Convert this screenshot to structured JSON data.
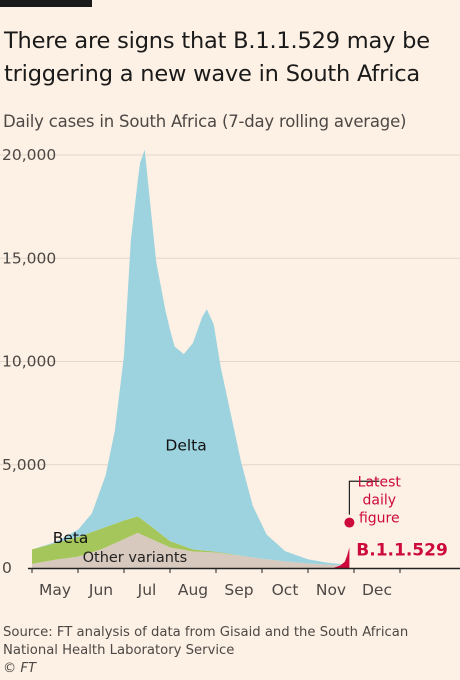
{
  "title": "There are signs that B.1.1.529 may be triggering a new wave in South Africa",
  "subtitle": "Daily cases in South Africa (7-day rolling average)",
  "source": "Source: FT analysis of data from Gisaid and the South African National Health Laboratory Service",
  "copyright": "© FT",
  "chart_data": {
    "type": "area",
    "stacked": true,
    "ylim": [
      0,
      20000
    ],
    "y_ticks": [
      0,
      5000,
      10000,
      15000,
      20000
    ],
    "y_tick_labels": [
      "0",
      "5,000",
      "10,000",
      "15,000",
      "20,000"
    ],
    "x_ticks": [
      "May",
      "Jun",
      "Jul",
      "Aug",
      "Sep",
      "Oct",
      "Nov",
      "Dec"
    ],
    "x_unit": "month index (0 = start of May 2021)",
    "series": [
      {
        "name": "Other variants",
        "color": "#d7c9be",
        "points": [
          [
            0,
            200
          ],
          [
            0.5,
            400
          ],
          [
            1,
            550
          ],
          [
            1.5,
            900
          ],
          [
            2,
            1400
          ],
          [
            2.3,
            1700
          ],
          [
            2.6,
            1400
          ],
          [
            3,
            1000
          ],
          [
            3.5,
            800
          ],
          [
            4,
            750
          ],
          [
            4.5,
            600
          ],
          [
            5,
            450
          ],
          [
            5.5,
            320
          ],
          [
            6,
            220
          ],
          [
            6.5,
            150
          ],
          [
            6.8,
            120
          ]
        ]
      },
      {
        "name": "Beta",
        "color": "#a5c65a",
        "points": [
          [
            0,
            700
          ],
          [
            0.5,
            800
          ],
          [
            1,
            950
          ],
          [
            1.5,
            1000
          ],
          [
            2,
            900
          ],
          [
            2.3,
            800
          ],
          [
            2.6,
            600
          ],
          [
            3,
            300
          ],
          [
            3.5,
            100
          ],
          [
            4,
            40
          ],
          [
            4.5,
            10
          ],
          [
            5,
            0
          ],
          [
            6.8,
            0
          ]
        ]
      },
      {
        "name": "Delta",
        "color": "#9dd3df",
        "points": [
          [
            0,
            0
          ],
          [
            0.5,
            50
          ],
          [
            1,
            350
          ],
          [
            1.3,
            900
          ],
          [
            1.6,
            2500
          ],
          [
            1.8,
            4500
          ],
          [
            2,
            8000
          ],
          [
            2.15,
            13500
          ],
          [
            2.35,
            17200
          ],
          [
            2.45,
            18000
          ],
          [
            2.55,
            16000
          ],
          [
            2.7,
            13000
          ],
          [
            2.9,
            11000
          ],
          [
            3.1,
            9500
          ],
          [
            3.3,
            9300
          ],
          [
            3.5,
            10000
          ],
          [
            3.7,
            11300
          ],
          [
            3.8,
            11700
          ],
          [
            3.95,
            11000
          ],
          [
            4.1,
            9000
          ],
          [
            4.3,
            7000
          ],
          [
            4.55,
            4500
          ],
          [
            4.8,
            2500
          ],
          [
            5.1,
            1200
          ],
          [
            5.5,
            500
          ],
          [
            6,
            200
          ],
          [
            6.4,
            100
          ],
          [
            6.8,
            50
          ]
        ]
      },
      {
        "name": "B.1.1.529",
        "color": "#cc0a3b",
        "points": [
          [
            6.55,
            0
          ],
          [
            6.7,
            120
          ],
          [
            6.8,
            300
          ],
          [
            6.85,
            600
          ],
          [
            6.9,
            1000
          ]
        ]
      }
    ],
    "latest_daily_figure": {
      "x": 6.9,
      "y": 2200
    },
    "annotations": [
      "Delta",
      "Beta",
      "Other variants",
      "B.1.1.529",
      "Latest daily figure"
    ],
    "annotation_lines": [
      "Latest",
      "daily",
      "figure"
    ]
  }
}
